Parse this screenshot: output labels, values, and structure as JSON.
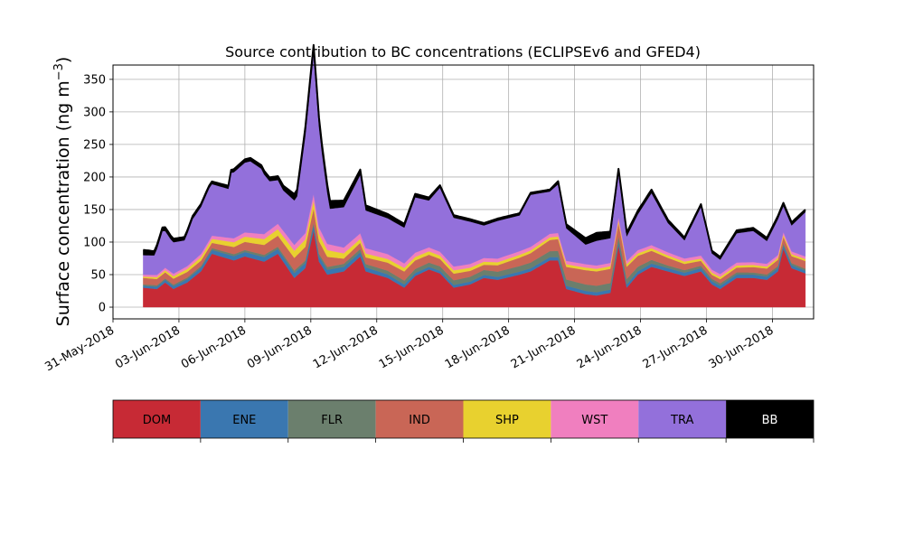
{
  "chart_data": {
    "type": "area",
    "stacked": true,
    "title": "Source contribution to BC concentrations (ECLIPSEv6 and GFED4)",
    "ylabel": "Surface concentration (ng m",
    "ylabel_superscript": "−3",
    "ylabel_close": ")",
    "ylim": [
      -18,
      372
    ],
    "yticks": [
      0,
      50,
      100,
      150,
      200,
      250,
      300,
      350
    ],
    "xrange": [
      "2018-05-31T00:00",
      "2018-07-01T21:00"
    ],
    "xticks": [
      "31-May-2018",
      "03-Jun-2018",
      "06-Jun-2018",
      "09-Jun-2018",
      "12-Jun-2018",
      "15-Jun-2018",
      "18-Jun-2018",
      "21-Jun-2018",
      "24-Jun-2018",
      "27-Jun-2018",
      "30-Jun-2018"
    ],
    "grid": true,
    "legend_position": "bottom",
    "series": [
      {
        "name": "DOM",
        "color": "#c72a35",
        "text_color": "#000000",
        "knots": [
          [
            "2018-06-01T09:00",
            30
          ],
          [
            "2018-06-02T00:00",
            28
          ],
          [
            "2018-06-02T09:00",
            38
          ],
          [
            "2018-06-02T18:00",
            28
          ],
          [
            "2018-06-03T09:00",
            38
          ],
          [
            "2018-06-04T00:00",
            55
          ],
          [
            "2018-06-04T12:00",
            82
          ],
          [
            "2018-06-05T12:00",
            72
          ],
          [
            "2018-06-06T00:00",
            78
          ],
          [
            "2018-06-06T21:00",
            70
          ],
          [
            "2018-06-07T12:00",
            82
          ],
          [
            "2018-06-08T06:00",
            45
          ],
          [
            "2018-06-08T18:00",
            60
          ],
          [
            "2018-06-09T03:00",
            118
          ],
          [
            "2018-06-09T09:00",
            70
          ],
          [
            "2018-06-09T18:00",
            50
          ],
          [
            "2018-06-10T12:00",
            55
          ],
          [
            "2018-06-11T06:00",
            78
          ],
          [
            "2018-06-11T12:00",
            55
          ],
          [
            "2018-06-12T12:00",
            45
          ],
          [
            "2018-06-13T06:00",
            30
          ],
          [
            "2018-06-13T18:00",
            48
          ],
          [
            "2018-06-14T09:00",
            58
          ],
          [
            "2018-06-14T21:00",
            52
          ],
          [
            "2018-06-15T12:00",
            30
          ],
          [
            "2018-06-16T06:00",
            35
          ],
          [
            "2018-06-16T21:00",
            45
          ],
          [
            "2018-06-17T12:00",
            42
          ],
          [
            "2018-06-18T12:00",
            50
          ],
          [
            "2018-06-19T00:00",
            55
          ],
          [
            "2018-06-19T21:00",
            72
          ],
          [
            "2018-06-20T06:00",
            72
          ],
          [
            "2018-06-20T15:00",
            28
          ],
          [
            "2018-06-21T12:00",
            20
          ],
          [
            "2018-06-22T00:00",
            18
          ],
          [
            "2018-06-22T15:00",
            22
          ],
          [
            "2018-06-23T00:00",
            95
          ],
          [
            "2018-06-23T09:00",
            30
          ],
          [
            "2018-06-23T21:00",
            50
          ],
          [
            "2018-06-24T12:00",
            62
          ],
          [
            "2018-06-25T06:00",
            55
          ],
          [
            "2018-06-26T00:00",
            48
          ],
          [
            "2018-06-26T18:00",
            55
          ],
          [
            "2018-06-27T06:00",
            35
          ],
          [
            "2018-06-27T15:00",
            28
          ],
          [
            "2018-06-28T09:00",
            45
          ],
          [
            "2018-06-29T03:00",
            45
          ],
          [
            "2018-06-29T18:00",
            42
          ],
          [
            "2018-06-30T06:00",
            55
          ],
          [
            "2018-06-30T12:00",
            90
          ],
          [
            "2018-06-30T21:00",
            60
          ],
          [
            "2018-07-01T12:00",
            52
          ]
        ]
      },
      {
        "name": "ENE",
        "color": "#3a77b0",
        "text_color": "#000000",
        "knots": [
          [
            "2018-06-01T09:00",
            3
          ],
          [
            "2018-06-04T12:00",
            6
          ],
          [
            "2018-06-09T03:00",
            8
          ],
          [
            "2018-06-14T09:00",
            4
          ],
          [
            "2018-06-20T06:00",
            5
          ],
          [
            "2018-06-23T00:00",
            5
          ],
          [
            "2018-06-30T12:00",
            5
          ],
          [
            "2018-07-01T12:00",
            4
          ]
        ]
      },
      {
        "name": "FLR",
        "color": "#6b7f6d",
        "text_color": "#000000",
        "knots": [
          [
            "2018-06-01T09:00",
            2
          ],
          [
            "2018-06-09T03:00",
            4
          ],
          [
            "2018-06-13T06:00",
            6
          ],
          [
            "2018-06-21T12:00",
            10
          ],
          [
            "2018-06-22T15:00",
            10
          ],
          [
            "2018-06-25T06:00",
            4
          ],
          [
            "2018-07-01T12:00",
            3
          ]
        ]
      },
      {
        "name": "IND",
        "color": "#c96656",
        "text_color": "#000000",
        "knots": [
          [
            "2018-06-01T09:00",
            10
          ],
          [
            "2018-06-04T12:00",
            8
          ],
          [
            "2018-06-09T03:00",
            22
          ],
          [
            "2018-06-10T12:00",
            8
          ],
          [
            "2018-06-13T06:00",
            14
          ],
          [
            "2018-06-16T21:00",
            8
          ],
          [
            "2018-06-21T12:00",
            22
          ],
          [
            "2018-06-22T15:00",
            22
          ],
          [
            "2018-06-24T12:00",
            14
          ],
          [
            "2018-06-27T06:00",
            6
          ],
          [
            "2018-06-30T12:00",
            10
          ],
          [
            "2018-07-01T12:00",
            12
          ]
        ]
      },
      {
        "name": "SHP",
        "color": "#e8d12f",
        "text_color": "#000000",
        "knots": [
          [
            "2018-06-01T09:00",
            2
          ],
          [
            "2018-06-09T03:00",
            12
          ],
          [
            "2018-06-11T06:00",
            6
          ],
          [
            "2018-06-20T06:00",
            4
          ],
          [
            "2018-06-23T00:00",
            4
          ],
          [
            "2018-07-01T12:00",
            3
          ]
        ]
      },
      {
        "name": "WST",
        "color": "#f07fbf",
        "text_color": "#000000",
        "knots": [
          [
            "2018-06-01T09:00",
            3
          ],
          [
            "2018-06-04T12:00",
            5
          ],
          [
            "2018-06-09T03:00",
            10
          ],
          [
            "2018-06-14T09:00",
            6
          ],
          [
            "2018-06-23T00:00",
            5
          ],
          [
            "2018-07-01T12:00",
            4
          ]
        ]
      },
      {
        "name": "TRA",
        "color": "#9370db",
        "text_color": "#000000",
        "knots": [
          [
            "2018-06-01T09:00",
            30
          ],
          [
            "2018-06-01T21:00",
            30
          ],
          [
            "2018-06-02T06:00",
            60
          ],
          [
            "2018-06-02T15:00",
            50
          ],
          [
            "2018-06-03T06:00",
            42
          ],
          [
            "2018-06-03T15:00",
            65
          ],
          [
            "2018-06-04T09:00",
            80
          ],
          [
            "2018-06-05T06:00",
            75
          ],
          [
            "2018-06-05T09:00",
            100
          ],
          [
            "2018-06-06T06:00",
            110
          ],
          [
            "2018-06-06T18:00",
            100
          ],
          [
            "2018-06-07T03:00",
            75
          ],
          [
            "2018-06-07T18:00",
            62
          ],
          [
            "2018-06-08T09:00",
            70
          ],
          [
            "2018-06-08T18:00",
            150
          ],
          [
            "2018-06-09T03:00",
            215
          ],
          [
            "2018-06-09T12:00",
            125
          ],
          [
            "2018-06-09T21:00",
            55
          ],
          [
            "2018-06-10T12:00",
            62
          ],
          [
            "2018-06-11T06:00",
            90
          ],
          [
            "2018-06-11T12:00",
            58
          ],
          [
            "2018-06-12T12:00",
            55
          ],
          [
            "2018-06-13T06:00",
            55
          ],
          [
            "2018-06-13T18:00",
            85
          ],
          [
            "2018-06-14T09:00",
            72
          ],
          [
            "2018-06-14T21:00",
            98
          ],
          [
            "2018-06-15T12:00",
            75
          ],
          [
            "2018-06-16T06:00",
            65
          ],
          [
            "2018-06-16T21:00",
            50
          ],
          [
            "2018-06-17T12:00",
            58
          ],
          [
            "2018-06-18T12:00",
            55
          ],
          [
            "2018-06-19T00:00",
            80
          ],
          [
            "2018-06-19T21:00",
            65
          ],
          [
            "2018-06-20T06:00",
            75
          ],
          [
            "2018-06-20T15:00",
            50
          ],
          [
            "2018-06-21T12:00",
            30
          ],
          [
            "2018-06-22T00:00",
            38
          ],
          [
            "2018-06-22T15:00",
            38
          ],
          [
            "2018-06-23T00:00",
            68
          ],
          [
            "2018-06-23T09:00",
            38
          ],
          [
            "2018-06-23T21:00",
            55
          ],
          [
            "2018-06-24T12:00",
            80
          ],
          [
            "2018-06-25T06:00",
            45
          ],
          [
            "2018-06-26T00:00",
            28
          ],
          [
            "2018-06-26T18:00",
            75
          ],
          [
            "2018-06-27T06:00",
            25
          ],
          [
            "2018-06-27T15:00",
            22
          ],
          [
            "2018-06-28T09:00",
            45
          ],
          [
            "2018-06-29T03:00",
            48
          ],
          [
            "2018-06-29T18:00",
            35
          ],
          [
            "2018-06-30T06:00",
            55
          ],
          [
            "2018-06-30T12:00",
            40
          ],
          [
            "2018-06-30T21:00",
            40
          ],
          [
            "2018-07-01T12:00",
            68
          ]
        ]
      },
      {
        "name": "BB",
        "color": "#000000",
        "text_color": "#ffffff",
        "knots": [
          [
            "2018-06-01T09:00",
            8
          ],
          [
            "2018-06-02T00:00",
            6
          ],
          [
            "2018-06-04T12:00",
            4
          ],
          [
            "2018-06-07T12:00",
            6
          ],
          [
            "2018-06-09T03:00",
            14
          ],
          [
            "2018-06-11T06:00",
            8
          ],
          [
            "2018-06-14T21:00",
            4
          ],
          [
            "2018-06-19T21:00",
            3
          ],
          [
            "2018-06-22T00:00",
            12
          ],
          [
            "2018-06-22T15:00",
            10
          ],
          [
            "2018-06-23T00:00",
            6
          ],
          [
            "2018-06-26T18:00",
            4
          ],
          [
            "2018-06-30T12:00",
            5
          ],
          [
            "2018-07-01T12:00",
            4
          ]
        ]
      }
    ]
  }
}
